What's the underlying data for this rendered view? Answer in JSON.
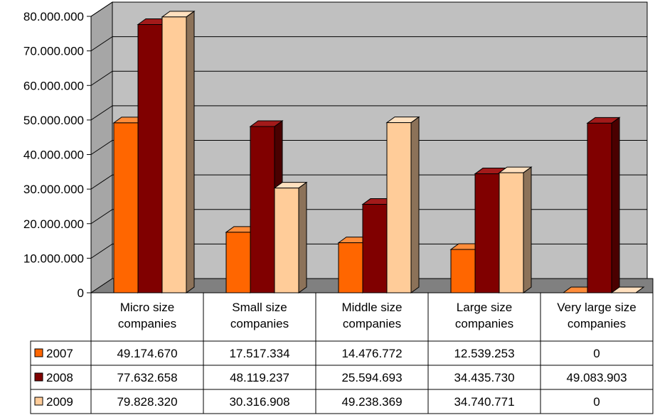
{
  "chart_data": {
    "type": "bar",
    "title": "",
    "xlabel": "",
    "ylabel": "",
    "ylim": [
      0,
      80000000
    ],
    "y_ticks": [
      "0",
      "10.000.000",
      "20.000.000",
      "30.000.000",
      "40.000.000",
      "50.000.000",
      "60.000.000",
      "70.000.000",
      "80.000.000"
    ],
    "grid": true,
    "style": "3d-clustered-bar-with-data-table",
    "categories": [
      [
        "Micro size",
        "companies"
      ],
      [
        "Small size",
        "companies"
      ],
      [
        "Middle size",
        "companies"
      ],
      [
        "Large size",
        "companies"
      ],
      [
        "Very large size",
        "companies"
      ]
    ],
    "series": [
      {
        "name": "2007",
        "color": "#ff6600",
        "side": "#b34700",
        "top": "#ff8c3a",
        "values": [
          49174670,
          17517334,
          14476772,
          12539253,
          0
        ],
        "labels": [
          "49.174.670",
          "17.517.334",
          "14.476.772",
          "12.539.253",
          "0"
        ]
      },
      {
        "name": "2008",
        "color": "#800000",
        "side": "#4a0000",
        "top": "#a31a1a",
        "values": [
          77632658,
          48119237,
          25594693,
          34435730,
          49083903
        ],
        "labels": [
          "77.632.658",
          "48.119.237",
          "25.594.693",
          "34.435.730",
          "49.083.903"
        ]
      },
      {
        "name": "2009",
        "color": "#ffcc99",
        "side": "#8c7259",
        "top": "#ffe0bf",
        "values": [
          79828320,
          30316908,
          49238369,
          34740771,
          0
        ],
        "labels": [
          "79.828.320",
          "30.316.908",
          "49.238.369",
          "34.740.771",
          "0"
        ]
      }
    ]
  }
}
